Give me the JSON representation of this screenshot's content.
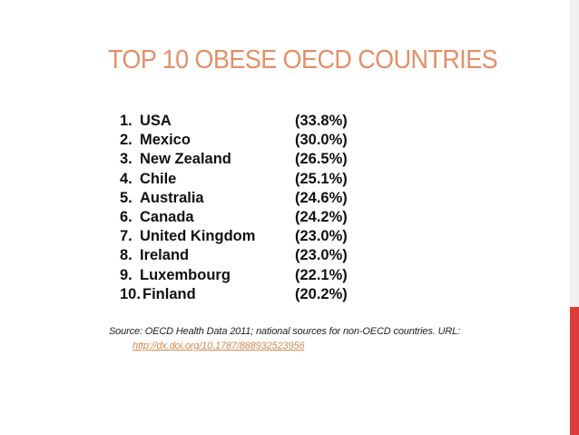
{
  "slide": {
    "title": "TOP 10 OBESE OECD COUNTRIES",
    "title_color": "#e0906a",
    "accent_color": "#dd3a3a",
    "link_color": "#d08a55",
    "rankings": [
      {
        "num": "1.",
        "country": "USA",
        "pct": "(33.8%)"
      },
      {
        "num": "2.",
        "country": "Mexico",
        "pct": "(30.0%)"
      },
      {
        "num": "3.",
        "country": "New Zealand",
        "pct": "(26.5%)"
      },
      {
        "num": "4.",
        "country": "Chile",
        "pct": "(25.1%)"
      },
      {
        "num": "5.",
        "country": "Australia",
        "pct": "(24.6%)"
      },
      {
        "num": "6.",
        "country": "Canada",
        "pct": "(24.2%)"
      },
      {
        "num": "7.",
        "country": "United Kingdom",
        "pct": "(23.0%)"
      },
      {
        "num": "8.",
        "country": "Ireland",
        "pct": "(23.0%)"
      },
      {
        "num": "9.",
        "country": "Luxembourg",
        "pct": "(22.1%)"
      },
      {
        "num": "10.",
        "country": "Finland",
        "pct": "(20.2%)"
      }
    ],
    "source_text": "Source: OECD Health Data 2011; national sources for non-OECD countries. URL:",
    "source_url": "http://dx.doi.org/10.1787/888932523956"
  }
}
